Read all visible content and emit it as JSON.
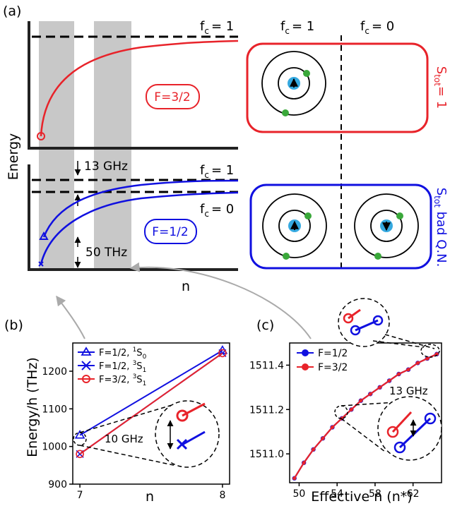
{
  "panel_labels": {
    "a": "(a)",
    "b": "(b)",
    "c": "(c)"
  },
  "panel_a": {
    "y_axis_label": "Energy",
    "x_axis_label": "n",
    "upper_fc_label": "f",
    "upper_fc_sub": "c",
    "upper_fc_value": "= 1",
    "lower_fc1_label": "f",
    "lower_fc1_sub": "c",
    "lower_fc1_value": "= 1",
    "lower_fc0_label": "f",
    "lower_fc0_sub": "c",
    "lower_fc0_value": "= 0",
    "label_F32": "F=3/2",
    "label_F12": "F=1/2",
    "gap_label": "13 GHz",
    "thz_label": "50 THz",
    "schematic_fc1_label": "f",
    "schematic_fc1_sub": "c",
    "schematic_fc1_value": "= 1",
    "schematic_fc0_label": "f",
    "schematic_fc0_sub": "c",
    "schematic_fc0_value": "= 0",
    "stot_top_main": "S",
    "stot_top_sub": "tot",
    "stot_top_value": "= 1",
    "stot_bottom_main": "S",
    "stot_bottom_sub": "tot",
    "stot_bottom_value": " bad Q.N.",
    "colors": {
      "red": "#e8232a",
      "blue": "#1010e0",
      "gray": "#c8c8c8",
      "nucleus": "#35a9e0",
      "electron": "#3aa83a"
    }
  },
  "panel_b": {
    "ylabel": "Energy/h (THz)",
    "xlabel": "n",
    "yticks": [
      "900",
      "1000",
      "1100",
      "1200"
    ],
    "xticks": [
      "7",
      "8"
    ],
    "legend": [
      {
        "text": "F=1/2, ",
        "sup": "1",
        "tail": "S",
        "sub": "0"
      },
      {
        "text": "F=1/2, ",
        "sup": "3",
        "tail": "S",
        "sub": "1"
      },
      {
        "text": "F=3/2, ",
        "sup": "3",
        "tail": "S",
        "sub": "1"
      }
    ],
    "inset_label": "10 GHz"
  },
  "panel_c": {
    "xlabel": "Effective n (n*)",
    "yticks": [
      "1511.0",
      "1511.2",
      "1511.4"
    ],
    "xticks": [
      "50",
      "54",
      "58",
      "62"
    ],
    "legend": [
      "F=1/2",
      "F=3/2"
    ],
    "inset_label": "13 GHz"
  },
  "chart_data": [
    {
      "type": "line",
      "panel": "b",
      "xlabel": "n",
      "ylabel": "Energy/h (THz)",
      "xlim": [
        6.95,
        8.05
      ],
      "ylim": [
        900,
        1275
      ],
      "x": [
        7,
        8
      ],
      "series": [
        {
          "name": "F=1/2, 1S0",
          "values": [
            1030,
            1255
          ]
        },
        {
          "name": "F=1/2, 3S1",
          "values": [
            980,
            1248
          ]
        },
        {
          "name": "F=3/2, 3S1",
          "values": [
            980,
            1248
          ]
        }
      ]
    },
    {
      "type": "line",
      "panel": "c",
      "xlabel": "Effective n (n*)",
      "ylabel": "",
      "xlim": [
        49.0,
        65.0
      ],
      "ylim": [
        1510.87,
        1511.5
      ],
      "x": [
        49.5,
        50.5,
        51.5,
        52.5,
        53.5,
        54.5,
        55.5,
        56.5,
        57.5,
        58.5,
        59.5,
        60.5,
        61.5,
        62.5,
        63.5,
        64.5
      ],
      "series": [
        {
          "name": "F=1/2",
          "values": [
            1510.89,
            1510.96,
            1511.02,
            1511.07,
            1511.12,
            1511.16,
            1511.2,
            1511.24,
            1511.27,
            1511.3,
            1511.33,
            1511.36,
            1511.38,
            1511.41,
            1511.43,
            1511.45
          ]
        },
        {
          "name": "F=3/2",
          "values": [
            1510.89,
            1510.96,
            1511.02,
            1511.07,
            1511.12,
            1511.16,
            1511.2,
            1511.24,
            1511.27,
            1511.3,
            1511.33,
            1511.36,
            1511.38,
            1511.41,
            1511.43,
            1511.45
          ]
        }
      ]
    }
  ]
}
